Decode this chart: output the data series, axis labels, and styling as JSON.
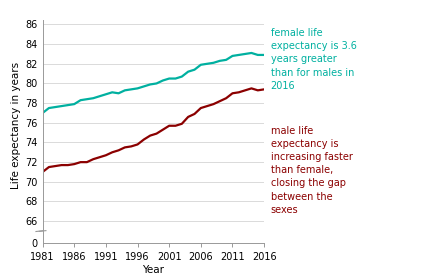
{
  "years": [
    1981,
    1982,
    1983,
    1984,
    1985,
    1986,
    1987,
    1988,
    1989,
    1990,
    1991,
    1992,
    1993,
    1994,
    1995,
    1996,
    1997,
    1998,
    1999,
    2000,
    2001,
    2002,
    2003,
    2004,
    2005,
    2006,
    2007,
    2008,
    2009,
    2010,
    2011,
    2012,
    2013,
    2014,
    2015,
    2016
  ],
  "female": [
    77.0,
    77.5,
    77.6,
    77.7,
    77.8,
    77.9,
    78.3,
    78.4,
    78.5,
    78.7,
    78.9,
    79.1,
    79.0,
    79.3,
    79.4,
    79.5,
    79.7,
    79.9,
    80.0,
    80.3,
    80.5,
    80.5,
    80.7,
    81.2,
    81.4,
    81.9,
    82.0,
    82.1,
    82.3,
    82.4,
    82.8,
    82.9,
    83.0,
    83.1,
    82.9,
    82.9
  ],
  "male": [
    71.0,
    71.5,
    71.6,
    71.7,
    71.7,
    71.8,
    72.0,
    72.0,
    72.3,
    72.5,
    72.7,
    73.0,
    73.2,
    73.5,
    73.6,
    73.8,
    74.3,
    74.7,
    74.9,
    75.3,
    75.7,
    75.7,
    75.9,
    76.6,
    76.9,
    77.5,
    77.7,
    77.9,
    78.2,
    78.5,
    79.0,
    79.1,
    79.3,
    79.5,
    79.3,
    79.4
  ],
  "female_color": "#00b0a0",
  "male_color": "#8b0000",
  "female_annotation": "female life\nexpectancy is 3.6\nyears greater\nthan for males in\n2016",
  "male_annotation": "male life\nexpectancy is\nincreasing faster\nthan female,\nclosing the gap\nbetween the\nsexes",
  "ylabel": "Life expectancy in years",
  "xlabel": "Year",
  "yticks_main": [
    66,
    68,
    70,
    72,
    74,
    76,
    78,
    80,
    82,
    84,
    86
  ],
  "ylim_main_bottom": 65.0,
  "ylim_main_top": 86.5,
  "xticks": [
    1981,
    1986,
    1991,
    1996,
    2001,
    2006,
    2011,
    2016
  ],
  "xlim_left": 1981,
  "xlim_right": 2016,
  "female_color_hex": "#00b0a0",
  "male_color_hex": "#8b0000",
  "grid_color": "#cccccc",
  "axis_color": "#999999",
  "tick_label_fontsize": 7,
  "annotation_fontsize": 7,
  "ylabel_fontsize": 7.5,
  "xlabel_fontsize": 7.5,
  "line_width": 1.6,
  "background_color": "#ffffff"
}
